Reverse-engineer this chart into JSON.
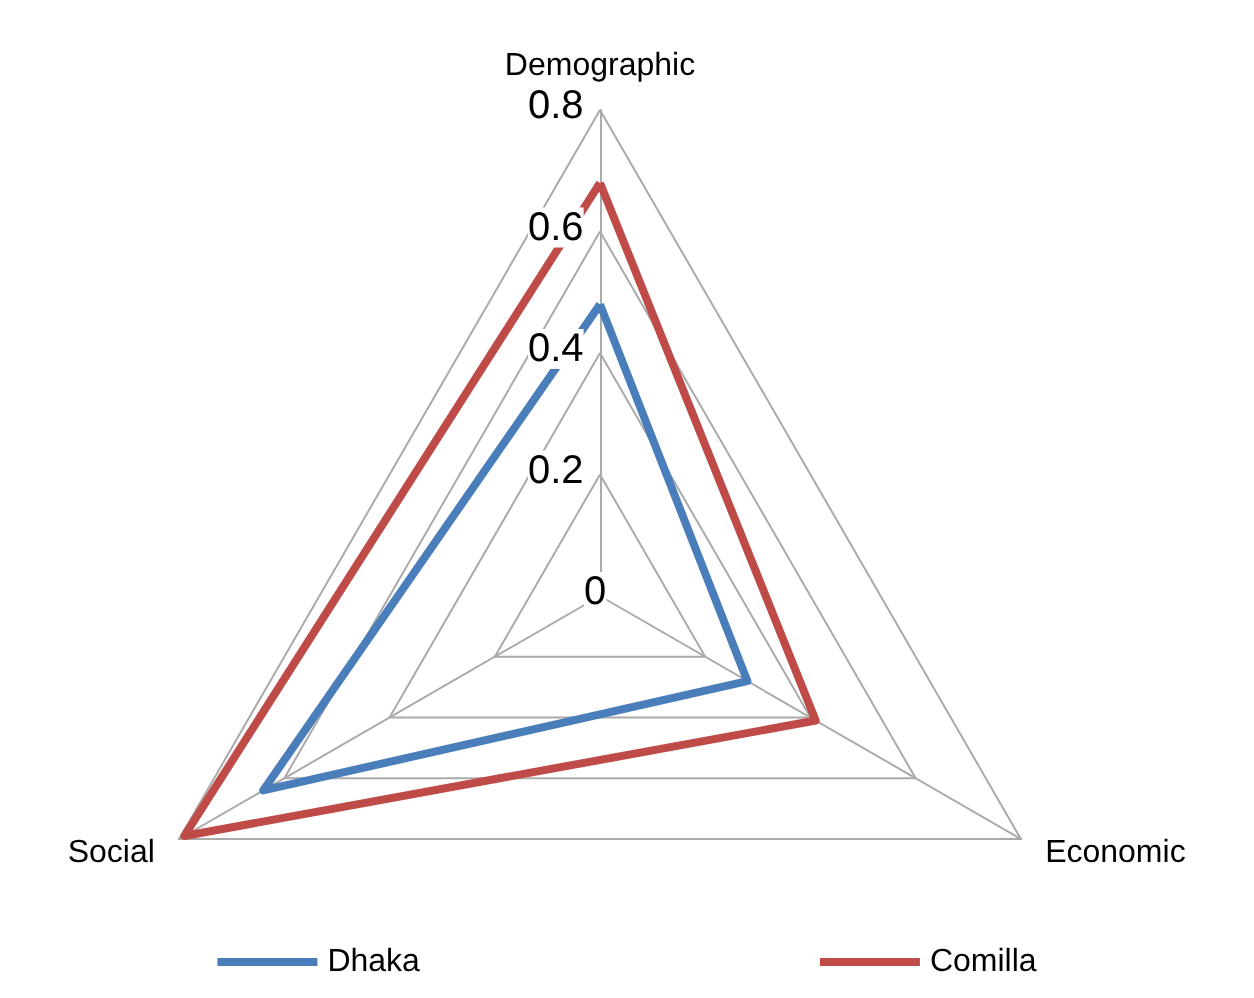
{
  "chart_data": {
    "type": "radar",
    "categories": [
      "Demographic",
      "Economic",
      "Social"
    ],
    "series": [
      {
        "name": "Dhaka",
        "color": "#4a7ebb",
        "values": [
          0.48,
          0.28,
          0.64
        ]
      },
      {
        "name": "Comilla",
        "color": "#be4b48",
        "values": [
          0.68,
          0.41,
          0.79
        ]
      }
    ],
    "ylim": [
      0,
      0.8
    ],
    "yticks": [
      0,
      0.2,
      0.4,
      0.6,
      0.8
    ],
    "legend": "bottom",
    "marker": "none",
    "grid": true
  }
}
